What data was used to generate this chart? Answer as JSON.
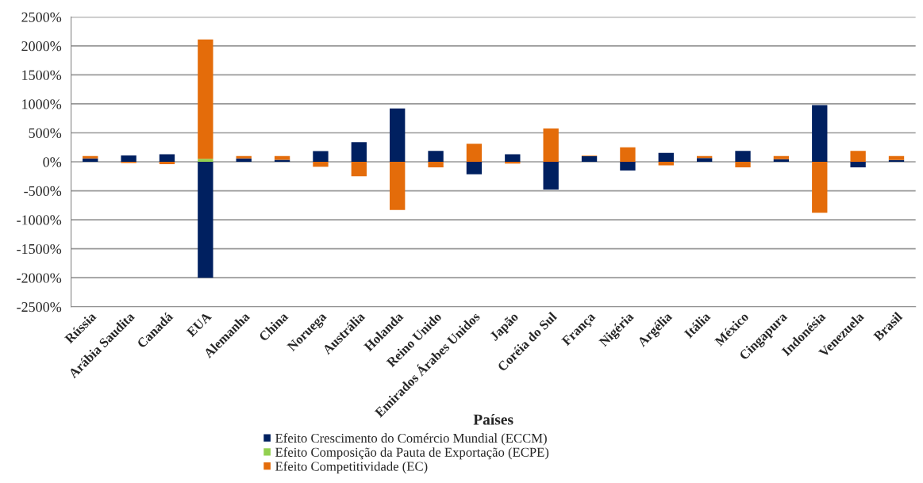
{
  "chart_data": {
    "type": "bar",
    "stacked": true,
    "xlabel": "Países",
    "categories": [
      "Rússia",
      "Arábia Saudita",
      "Canadá",
      "EUA",
      "Alemanha",
      "China",
      "Noruega",
      "Austrália",
      "Holanda",
      "Reino Unido",
      "Emirados Árabes Unidos",
      "Japão",
      "Coréia do Sul",
      "França",
      "Nigéria",
      "Argélia",
      "Itália",
      "México",
      "Cingapura",
      "Indonésia",
      "Venezuela",
      "Brasil"
    ],
    "series": [
      {
        "name": "Efeito Crescimento do Comércio Mundial (ECCM)",
        "color": "#002060",
        "values": [
          60,
          110,
          130,
          -2000,
          60,
          35,
          185,
          340,
          920,
          190,
          -215,
          130,
          -480,
          95,
          -150,
          155,
          65,
          190,
          45,
          980,
          -95,
          30
        ]
      },
      {
        "name": "Efeito Composição da Pauta de Exportação (ECPE)",
        "color": "#92d050",
        "values": [
          0,
          0,
          0,
          50,
          0,
          0,
          0,
          0,
          0,
          0,
          0,
          0,
          0,
          0,
          0,
          0,
          0,
          0,
          0,
          0,
          0,
          0
        ]
      },
      {
        "name": "Efeito Competitividade (EC)",
        "color": "#e46c0a",
        "values": [
          40,
          -20,
          -40,
          2060,
          40,
          65,
          -85,
          -250,
          -830,
          -95,
          310,
          -30,
          575,
          10,
          250,
          -60,
          35,
          -95,
          55,
          -880,
          190,
          70
        ]
      }
    ],
    "ylim": [
      -2500,
      2500
    ],
    "yticks": [
      {
        "value": -2500,
        "label": "-2500%"
      },
      {
        "value": -2000,
        "label": "-2000%"
      },
      {
        "value": -1500,
        "label": "-1500%"
      },
      {
        "value": -1000,
        "label": "-1000%"
      },
      {
        "value": -500,
        "label": "-500%"
      },
      {
        "value": 0,
        "label": "0%"
      },
      {
        "value": 500,
        "label": "500%"
      },
      {
        "value": 1000,
        "label": "1000%"
      },
      {
        "value": 1500,
        "label": "1500%"
      },
      {
        "value": 2000,
        "label": "2000%"
      },
      {
        "value": 2500,
        "label": "2500%"
      }
    ],
    "grid": "y",
    "legend": "bottom"
  }
}
